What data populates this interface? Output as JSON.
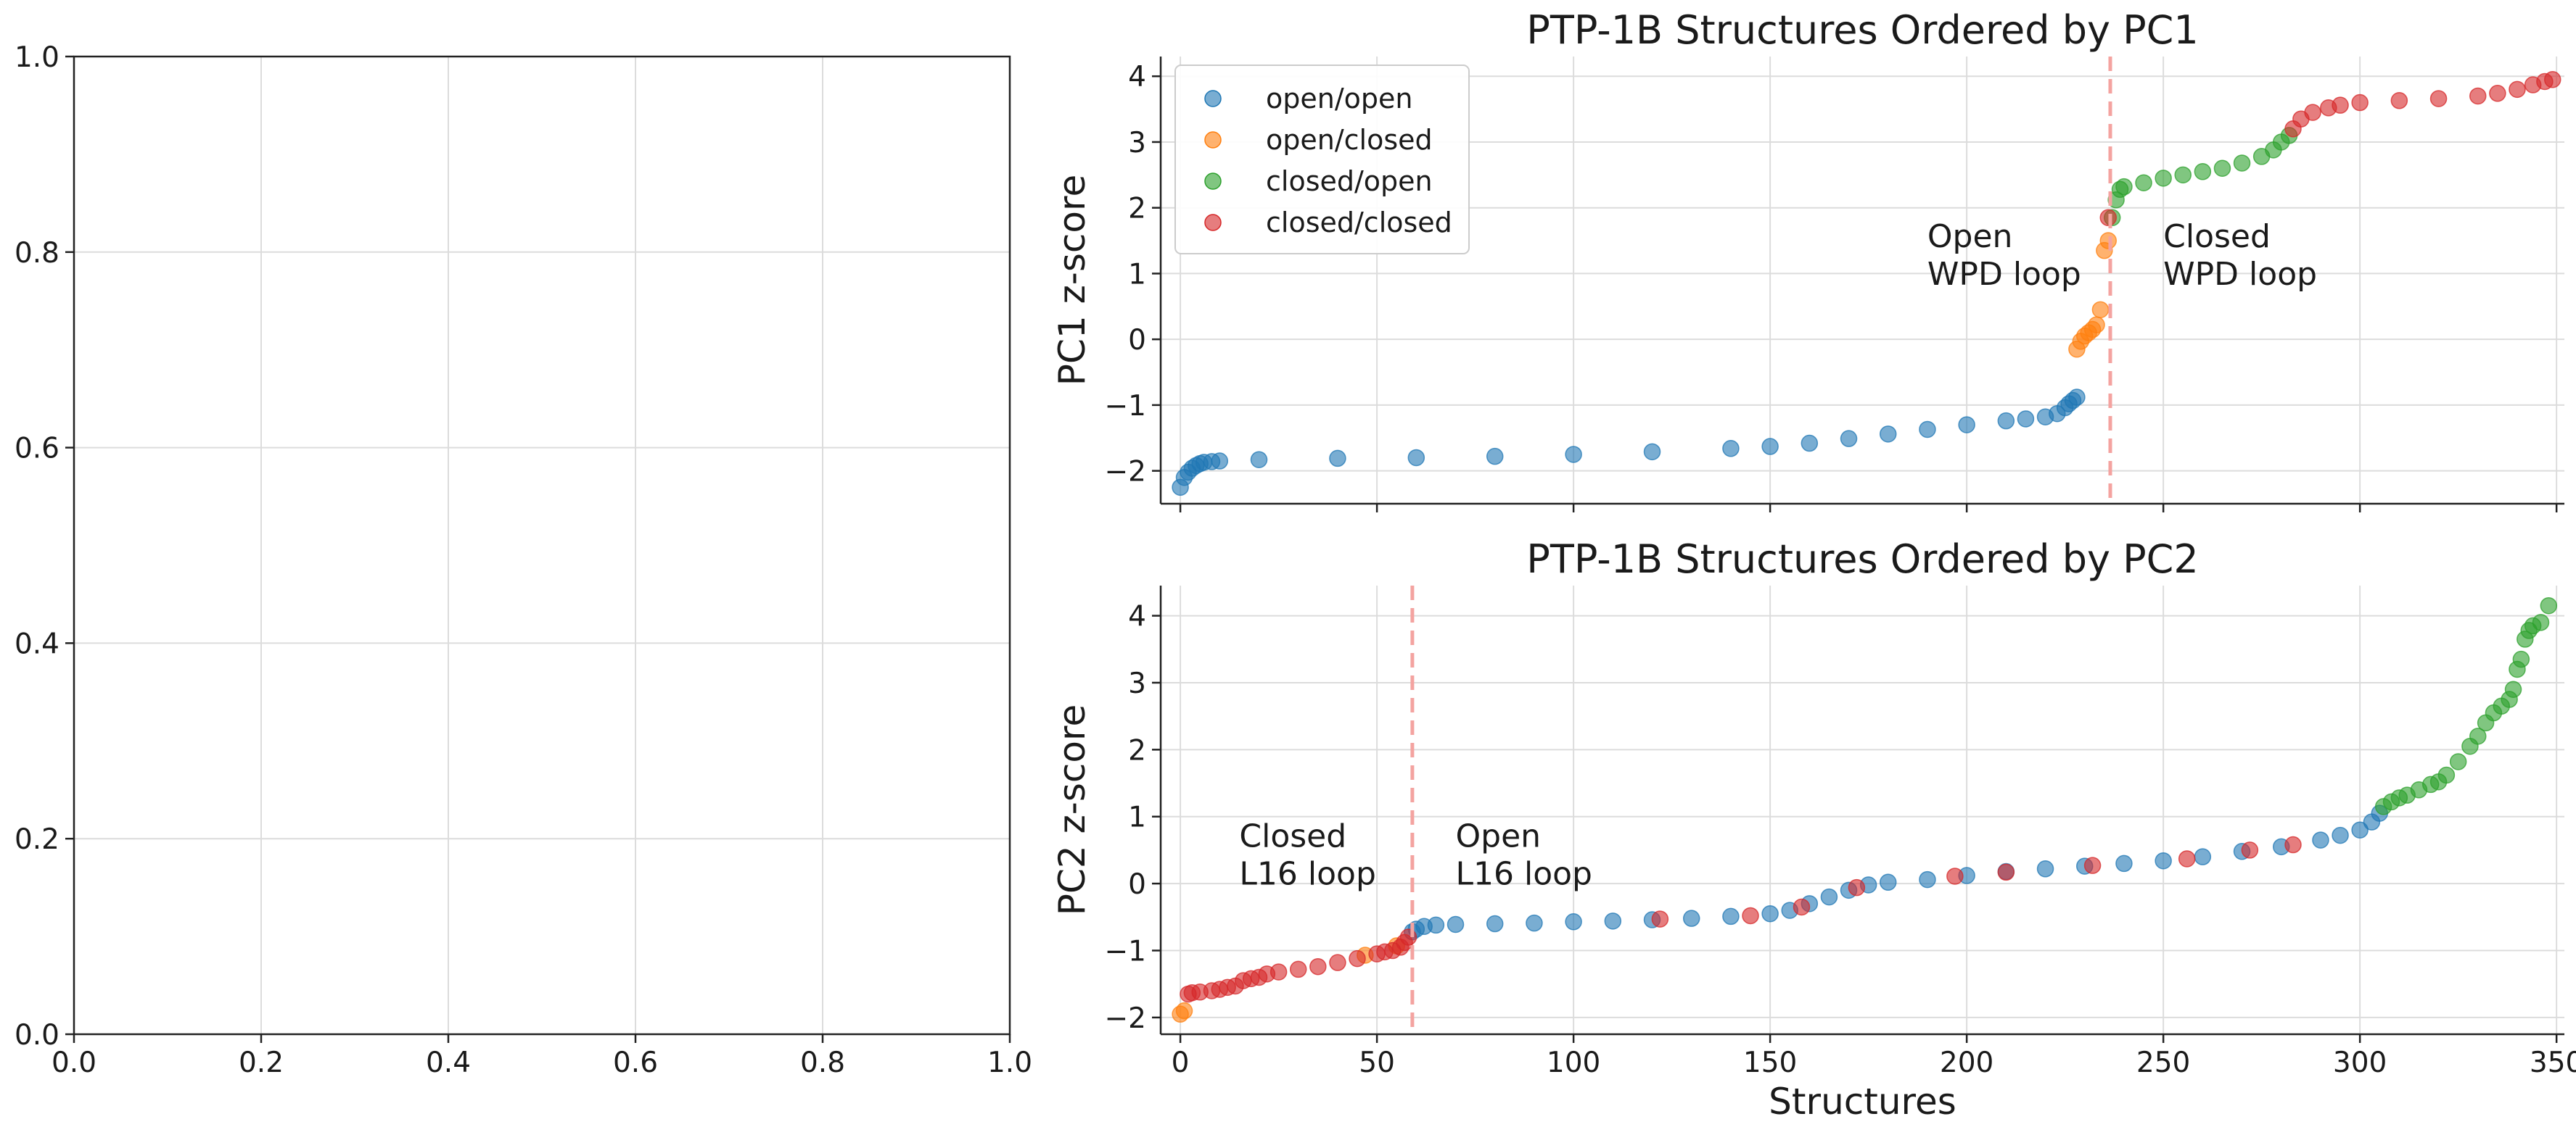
{
  "chart_data": [
    {
      "id": "empty",
      "type": "scatter",
      "title": "",
      "xlabel": "",
      "ylabel": "",
      "xlim": [
        0,
        1
      ],
      "ylim": [
        0,
        1
      ],
      "xticks": [
        0,
        0.2,
        0.4,
        0.6,
        0.8,
        1
      ],
      "yticks": [
        0,
        0.2,
        0.4,
        0.6,
        0.8,
        1
      ],
      "xticklabels": [
        "0.0",
        "0.2",
        "0.4",
        "0.6",
        "0.8",
        "1.0"
      ],
      "yticklabels": [
        "0.0",
        "0.2",
        "0.4",
        "0.6",
        "0.8",
        "1.0"
      ],
      "grid": true,
      "series": []
    },
    {
      "id": "pc1",
      "type": "scatter",
      "title": "PTP-1B Structures Ordered by PC1",
      "xlabel": "",
      "ylabel": "PC1 z-score",
      "xlim": [
        -5,
        352
      ],
      "ylim": [
        -2.5,
        4.3
      ],
      "xticks": [
        0,
        50,
        100,
        150,
        200,
        250,
        300,
        350
      ],
      "yticks": [
        -2,
        -1,
        0,
        1,
        2,
        3,
        4
      ],
      "xticklabels": [],
      "yticklabels": [
        "−2",
        "−1",
        "0",
        "1",
        "2",
        "3",
        "4"
      ],
      "grid": true,
      "legend": {
        "placement": "top-left",
        "entries": [
          "open/open",
          "open/closed",
          "closed/open",
          "closed/closed"
        ]
      },
      "vline": {
        "x": 236.5,
        "style": "dashed",
        "color": "#f4a3a0"
      },
      "annotations": [
        {
          "lines": [
            "Open",
            "WPD loop"
          ],
          "x": 190,
          "y": 1.4
        },
        {
          "lines": [
            "Closed",
            "WPD loop"
          ],
          "x": 250,
          "y": 1.4
        }
      ],
      "series": [
        {
          "name": "open/open",
          "color": "#1f77b4",
          "points": [
            [
              0,
              -2.25
            ],
            [
              1,
              -2.1
            ],
            [
              2,
              -2.02
            ],
            [
              3,
              -1.96
            ],
            [
              4,
              -1.92
            ],
            [
              5,
              -1.89
            ],
            [
              6,
              -1.87
            ],
            [
              8,
              -1.86
            ],
            [
              10,
              -1.85
            ],
            [
              20,
              -1.83
            ],
            [
              40,
              -1.81
            ],
            [
              60,
              -1.8
            ],
            [
              80,
              -1.78
            ],
            [
              100,
              -1.75
            ],
            [
              120,
              -1.71
            ],
            [
              140,
              -1.66
            ],
            [
              150,
              -1.63
            ],
            [
              160,
              -1.58
            ],
            [
              170,
              -1.51
            ],
            [
              180,
              -1.44
            ],
            [
              190,
              -1.37
            ],
            [
              200,
              -1.3
            ],
            [
              210,
              -1.24
            ],
            [
              215,
              -1.21
            ],
            [
              220,
              -1.18
            ],
            [
              223,
              -1.13
            ],
            [
              225,
              -1.04
            ],
            [
              226,
              -0.98
            ],
            [
              227,
              -0.93
            ],
            [
              228,
              -0.88
            ]
          ]
        },
        {
          "name": "open/closed",
          "color": "#ff7f0e",
          "points": [
            [
              228,
              -0.15
            ],
            [
              229,
              -0.03
            ],
            [
              230,
              0.05
            ],
            [
              231,
              0.1
            ],
            [
              232,
              0.15
            ],
            [
              233,
              0.22
            ],
            [
              234,
              0.45
            ],
            [
              235,
              1.35
            ],
            [
              236,
              1.5
            ]
          ]
        },
        {
          "name": "closed/open",
          "color": "#2ca02c",
          "points": [
            [
              237,
              1.85
            ],
            [
              238,
              2.12
            ],
            [
              239,
              2.28
            ],
            [
              240,
              2.32
            ],
            [
              245,
              2.38
            ],
            [
              250,
              2.45
            ],
            [
              255,
              2.5
            ],
            [
              260,
              2.55
            ],
            [
              265,
              2.6
            ],
            [
              270,
              2.68
            ],
            [
              275,
              2.78
            ],
            [
              278,
              2.88
            ],
            [
              280,
              3.0
            ],
            [
              282,
              3.1
            ]
          ]
        },
        {
          "name": "closed/closed",
          "color": "#d62728",
          "points": [
            [
              236,
              1.85
            ],
            [
              283,
              3.2
            ],
            [
              285,
              3.35
            ],
            [
              288,
              3.45
            ],
            [
              292,
              3.52
            ],
            [
              295,
              3.56
            ],
            [
              300,
              3.6
            ],
            [
              310,
              3.63
            ],
            [
              320,
              3.66
            ],
            [
              330,
              3.7
            ],
            [
              335,
              3.74
            ],
            [
              340,
              3.8
            ],
            [
              344,
              3.87
            ],
            [
              347,
              3.92
            ],
            [
              349,
              3.95
            ]
          ]
        }
      ]
    },
    {
      "id": "pc2",
      "type": "scatter",
      "title": "PTP-1B Structures Ordered by PC2",
      "xlabel": "Structures",
      "ylabel": "PC2 z-score",
      "xlim": [
        -5,
        352
      ],
      "ylim": [
        -2.25,
        4.45
      ],
      "xticks": [
        0,
        50,
        100,
        150,
        200,
        250,
        300,
        350
      ],
      "yticks": [
        -2,
        -1,
        0,
        1,
        2,
        3,
        4
      ],
      "xticklabels": [
        "0",
        "50",
        "100",
        "150",
        "200",
        "250",
        "300",
        "350"
      ],
      "yticklabels": [
        "−2",
        "−1",
        "0",
        "1",
        "2",
        "3",
        "4"
      ],
      "grid": true,
      "vline": {
        "x": 59,
        "style": "dashed",
        "color": "#f4a3a0"
      },
      "annotations": [
        {
          "lines": [
            "Closed",
            "L16 loop"
          ],
          "x": 15,
          "y": 0.55
        },
        {
          "lines": [
            "Open",
            "L16 loop"
          ],
          "x": 70,
          "y": 0.55
        }
      ],
      "series": [
        {
          "name": "open/open",
          "color": "#1f77b4",
          "points": [
            [
              59,
              -0.72
            ],
            [
              60,
              -0.68
            ],
            [
              62,
              -0.64
            ],
            [
              65,
              -0.62
            ],
            [
              70,
              -0.61
            ],
            [
              80,
              -0.6
            ],
            [
              90,
              -0.59
            ],
            [
              100,
              -0.57
            ],
            [
              110,
              -0.56
            ],
            [
              120,
              -0.54
            ],
            [
              130,
              -0.52
            ],
            [
              140,
              -0.49
            ],
            [
              150,
              -0.45
            ],
            [
              155,
              -0.4
            ],
            [
              160,
              -0.3
            ],
            [
              165,
              -0.2
            ],
            [
              170,
              -0.1
            ],
            [
              175,
              -0.02
            ],
            [
              180,
              0.02
            ],
            [
              190,
              0.06
            ],
            [
              200,
              0.12
            ],
            [
              210,
              0.18
            ],
            [
              220,
              0.22
            ],
            [
              230,
              0.26
            ],
            [
              240,
              0.3
            ],
            [
              250,
              0.34
            ],
            [
              260,
              0.4
            ],
            [
              270,
              0.48
            ],
            [
              280,
              0.55
            ],
            [
              290,
              0.65
            ],
            [
              295,
              0.72
            ],
            [
              300,
              0.8
            ],
            [
              303,
              0.92
            ],
            [
              305,
              1.05
            ]
          ]
        },
        {
          "name": "open/closed",
          "color": "#ff7f0e",
          "points": [
            [
              0,
              -1.95
            ],
            [
              1,
              -1.9
            ],
            [
              47,
              -1.07
            ],
            [
              55,
              -0.93
            ]
          ]
        },
        {
          "name": "closed/open",
          "color": "#2ca02c",
          "points": [
            [
              306,
              1.15
            ],
            [
              308,
              1.22
            ],
            [
              310,
              1.28
            ],
            [
              312,
              1.32
            ],
            [
              315,
              1.4
            ],
            [
              318,
              1.48
            ],
            [
              320,
              1.52
            ],
            [
              322,
              1.62
            ],
            [
              325,
              1.82
            ],
            [
              328,
              2.05
            ],
            [
              330,
              2.2
            ],
            [
              332,
              2.4
            ],
            [
              334,
              2.55
            ],
            [
              336,
              2.65
            ],
            [
              338,
              2.75
            ],
            [
              339,
              2.9
            ],
            [
              340,
              3.2
            ],
            [
              341,
              3.35
            ],
            [
              342,
              3.65
            ],
            [
              343,
              3.78
            ],
            [
              344,
              3.85
            ],
            [
              346,
              3.9
            ],
            [
              348,
              4.15
            ]
          ]
        },
        {
          "name": "closed/closed",
          "color": "#d62728",
          "points": [
            [
              2,
              -1.65
            ],
            [
              3,
              -1.63
            ],
            [
              5,
              -1.62
            ],
            [
              8,
              -1.6
            ],
            [
              10,
              -1.58
            ],
            [
              12,
              -1.55
            ],
            [
              14,
              -1.53
            ],
            [
              16,
              -1.45
            ],
            [
              18,
              -1.42
            ],
            [
              20,
              -1.4
            ],
            [
              22,
              -1.35
            ],
            [
              25,
              -1.32
            ],
            [
              30,
              -1.28
            ],
            [
              35,
              -1.24
            ],
            [
              40,
              -1.18
            ],
            [
              45,
              -1.12
            ],
            [
              50,
              -1.05
            ],
            [
              52,
              -1.02
            ],
            [
              54,
              -1.0
            ],
            [
              56,
              -0.95
            ],
            [
              57,
              -0.88
            ],
            [
              58,
              -0.8
            ],
            [
              122,
              -0.53
            ],
            [
              145,
              -0.48
            ],
            [
              158,
              -0.35
            ],
            [
              172,
              -0.06
            ],
            [
              197,
              0.11
            ],
            [
              210,
              0.17
            ],
            [
              232,
              0.27
            ],
            [
              256,
              0.37
            ],
            [
              272,
              0.5
            ],
            [
              283,
              0.58
            ]
          ]
        }
      ]
    }
  ]
}
